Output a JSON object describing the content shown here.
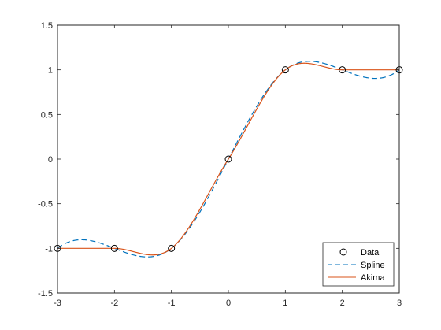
{
  "chart_data": {
    "type": "line",
    "title": "",
    "xlabel": "",
    "ylabel": "",
    "xlim": [
      -3,
      3
    ],
    "ylim": [
      -1.5,
      1.5
    ],
    "x_ticks": [
      "-3",
      "-2",
      "-1",
      "0",
      "1",
      "2",
      "3"
    ],
    "y_ticks": [
      "1.5",
      "1",
      "0.5",
      "0",
      "-0.5",
      "-1",
      "-1.5"
    ],
    "grid": false,
    "legend_position": "bottom-right",
    "colors": {
      "axes": "#262626",
      "data": "#000000",
      "spline": "#0072BD",
      "akima": "#D95319"
    },
    "series": [
      {
        "name": "Data",
        "style": "markers",
        "x": [
          -3,
          -2,
          -1,
          0,
          1,
          2,
          3
        ],
        "y": [
          -1,
          -1,
          -1,
          0,
          1,
          1,
          1
        ]
      },
      {
        "name": "Spline",
        "style": "dashed",
        "x": [
          -3,
          -2,
          -1,
          0,
          1,
          2,
          3
        ],
        "y": [
          -1,
          -1,
          -1,
          0,
          1,
          1,
          1
        ]
      },
      {
        "name": "Akima",
        "style": "solid",
        "x": [
          -3,
          -2,
          -1,
          0,
          1,
          2,
          3
        ],
        "y": [
          -1,
          -1,
          -1,
          0,
          1,
          1,
          1
        ]
      }
    ]
  }
}
